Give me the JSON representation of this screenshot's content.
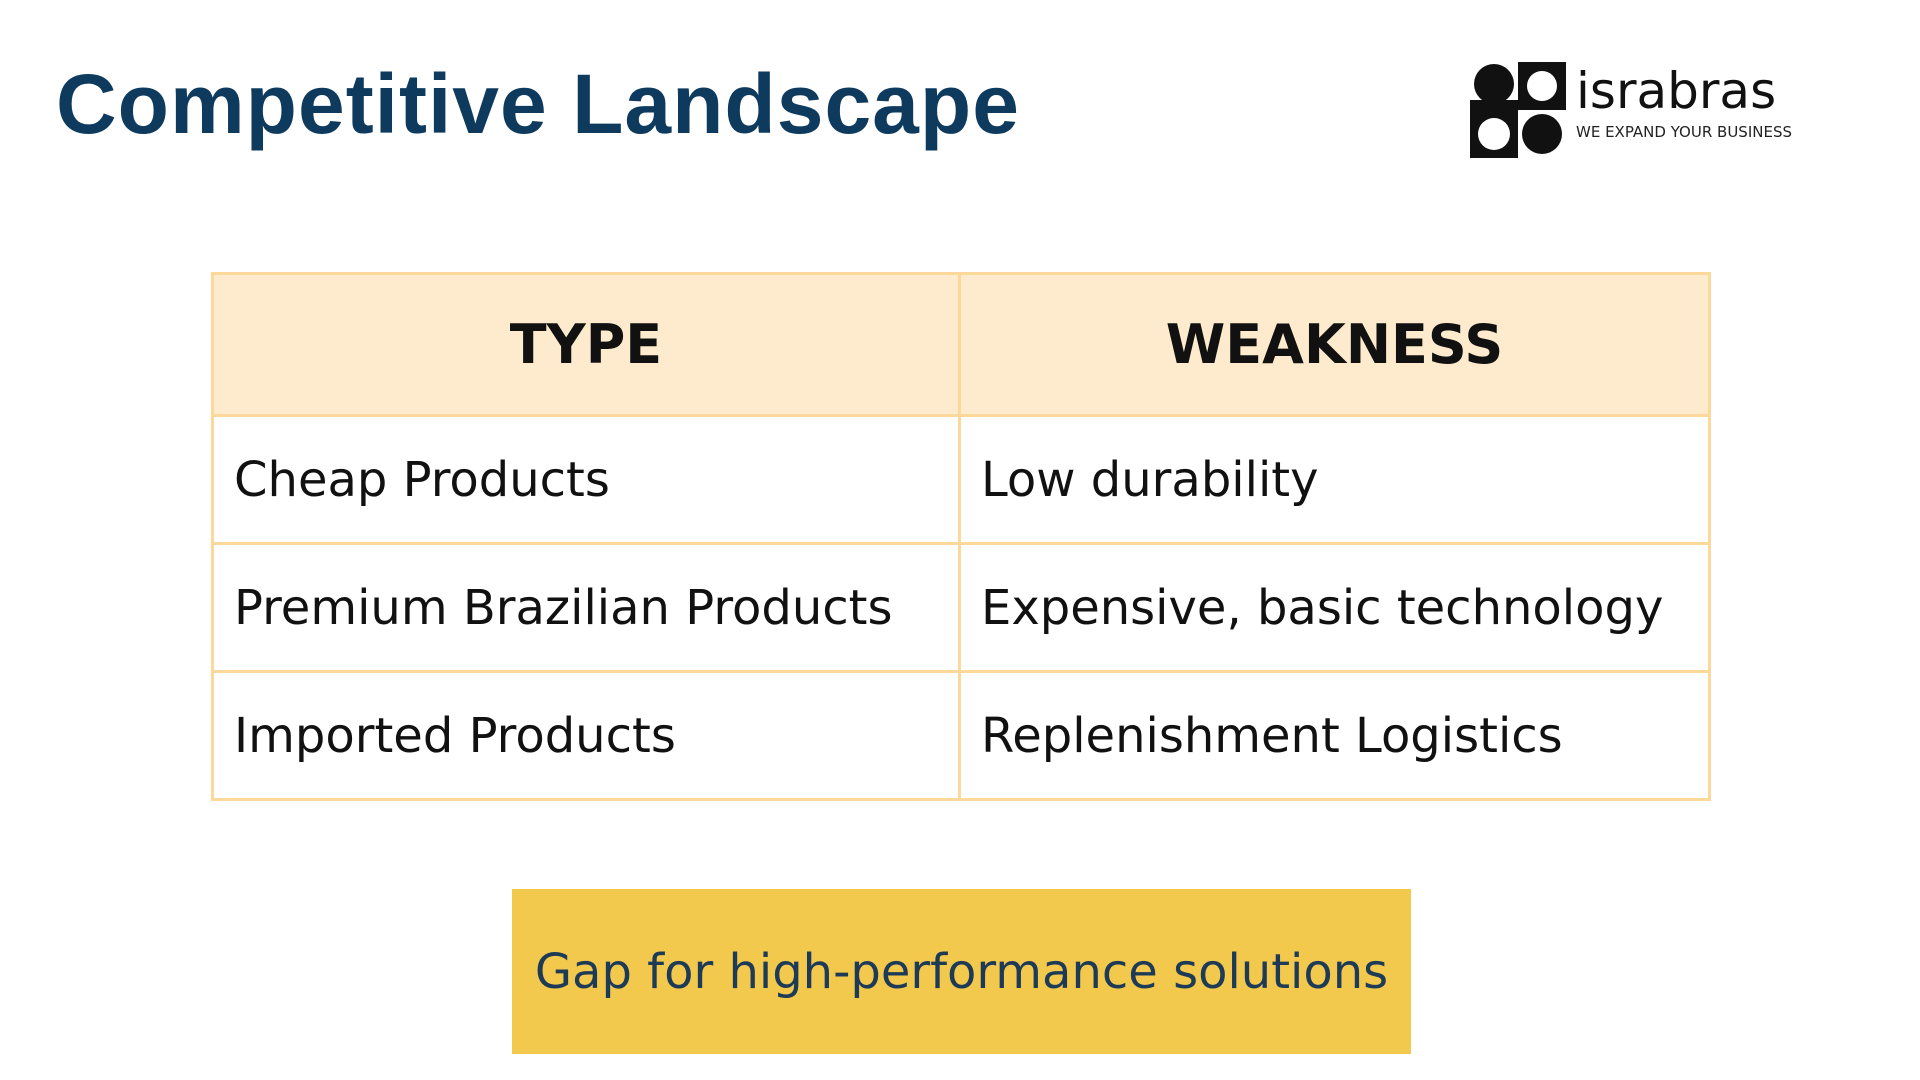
{
  "header": {
    "title": "Competitive Landscape"
  },
  "logo": {
    "name": "israbras",
    "tagline": "WE EXPAND YOUR BUSINESS"
  },
  "table": {
    "columns": [
      "TYPE",
      "WEAKNESS"
    ],
    "rows": [
      [
        "Cheap Products",
        "Low durability"
      ],
      [
        "Premium Brazilian Products",
        "Expensive, basic technology"
      ],
      [
        "Imported Products",
        "Replenishment Logistics"
      ]
    ]
  },
  "callout": {
    "text": "Gap for high-performance solutions"
  }
}
